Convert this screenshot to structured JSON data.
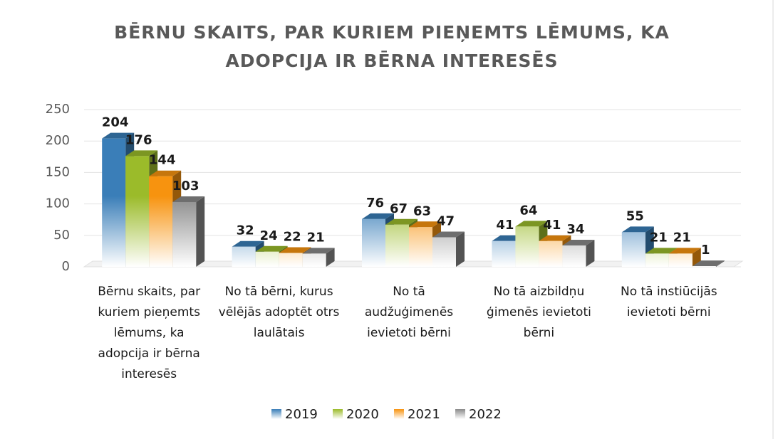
{
  "chart_data": {
    "type": "bar3d",
    "title": "BĒRNU SKAITS, PAR KURIEM PIEŅEMTS LĒMUMS, KA ADOPCIJA IR BĒRNA INTERESĒS",
    "categories": [
      "Bērnu skaits, par kuriem pieņemts lēmums, ka adopcija ir bērna interesēs",
      "No tā bērni, kurus vēlējās adoptēt otrs laulātais",
      "No tā audžuģimenēs ievietoti bērni",
      "No tā aizbildņu ģimenēs ievietoti bērni",
      "No tā instiūcijās ievietoti bērni"
    ],
    "series": [
      {
        "name": "2019",
        "color": "#3a7eb8",
        "values": [
          204,
          32,
          76,
          41,
          55
        ]
      },
      {
        "name": "2020",
        "color": "#9bbb2a",
        "values": [
          176,
          24,
          67,
          64,
          21
        ]
      },
      {
        "name": "2021",
        "color": "#f7930f",
        "values": [
          144,
          22,
          63,
          41,
          21
        ]
      },
      {
        "name": "2022",
        "color": "#8a8a8a",
        "values": [
          103,
          21,
          47,
          34,
          1
        ]
      }
    ],
    "ylim": [
      0,
      250
    ],
    "yticks": [
      0,
      50,
      100,
      150,
      200,
      250
    ],
    "grid": true,
    "legend": "bottom"
  }
}
